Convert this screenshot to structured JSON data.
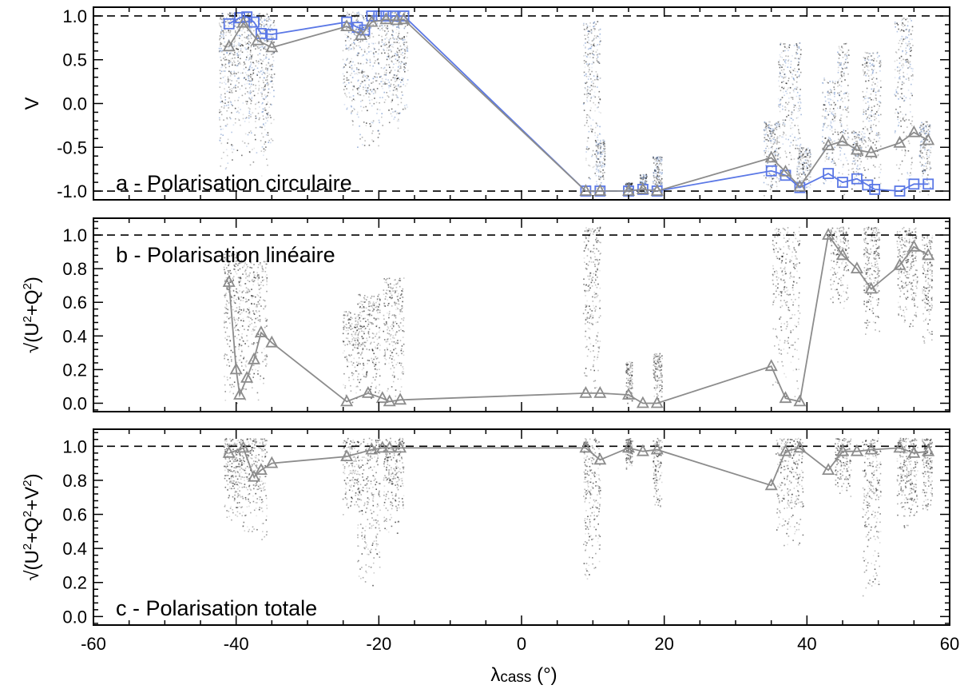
{
  "figure": {
    "xlabel_main": "λ",
    "xlabel_sub": "cass",
    "xlabel_unit": " (°)"
  },
  "chart_data": [
    {
      "type": "line",
      "panel": "a",
      "annotation": "a - Polarisation circulaire",
      "ylabel": "V",
      "xlim": [
        -60,
        60
      ],
      "ylim": [
        -1.1,
        1.1
      ],
      "x_ticks": [
        -60,
        -40,
        -20,
        0,
        20,
        40,
        60
      ],
      "y_ticks": [
        -1.0,
        -0.5,
        0.0,
        0.5,
        1.0
      ],
      "y_tick_labels": [
        "-1.0",
        "-0.5",
        "0.0",
        "0.5",
        "1.0"
      ],
      "reference_lines": [
        1.0,
        -1.0
      ],
      "grid": false,
      "series": [
        {
          "color": "#5b78e6",
          "marker": "square",
          "points": [
            [
              -41,
              0.91
            ],
            [
              -39.5,
              0.98
            ],
            [
              -38.5,
              0.99
            ],
            [
              -37.5,
              0.93
            ],
            [
              -36.5,
              0.8
            ],
            [
              -35,
              0.79
            ],
            [
              -24.5,
              0.93
            ],
            [
              -23,
              0.87
            ],
            [
              -22,
              0.84
            ],
            [
              -21,
              1.0
            ],
            [
              -20,
              1.0
            ],
            [
              -19,
              1.0
            ],
            [
              -18,
              1.0
            ],
            [
              -16.5,
              1.0
            ],
            [
              9,
              -1.0
            ],
            [
              11,
              -1.0
            ],
            [
              15,
              -1.0
            ],
            [
              17,
              -0.98
            ],
            [
              19,
              -1.0
            ],
            [
              35,
              -0.77
            ],
            [
              37,
              -0.82
            ],
            [
              39,
              -0.96
            ],
            [
              43,
              -0.8
            ],
            [
              45,
              -0.9
            ],
            [
              47,
              -0.86
            ],
            [
              48.5,
              -0.93
            ],
            [
              49.5,
              -0.98
            ],
            [
              53,
              -1.0
            ],
            [
              55,
              -0.92
            ],
            [
              57,
              -0.92
            ]
          ]
        },
        {
          "color": "#8c8c8c",
          "marker": "triangle",
          "points": [
            [
              -41,
              0.65
            ],
            [
              -39,
              0.92
            ],
            [
              -37,
              0.72
            ],
            [
              -35,
              0.64
            ],
            [
              -24.5,
              0.88
            ],
            [
              -22.5,
              0.78
            ],
            [
              -21,
              0.93
            ],
            [
              -19,
              0.96
            ],
            [
              -17.5,
              0.95
            ],
            [
              -16.5,
              0.96
            ],
            [
              9,
              -1.0
            ],
            [
              11,
              -1.0
            ],
            [
              15,
              -1.0
            ],
            [
              17,
              -0.98
            ],
            [
              19,
              -1.0
            ],
            [
              35,
              -0.62
            ],
            [
              37,
              -0.78
            ],
            [
              39,
              -0.95
            ],
            [
              43,
              -0.48
            ],
            [
              45,
              -0.43
            ],
            [
              47,
              -0.53
            ],
            [
              49,
              -0.56
            ],
            [
              53,
              -0.45
            ],
            [
              55,
              -0.33
            ],
            [
              57,
              -0.42
            ]
          ]
        }
      ],
      "scatter_columns": [
        {
          "x": -41.5,
          "width": 1.2,
          "y_min": -0.8,
          "y_max": 1.05,
          "density": 1.0,
          "tint": "#6d8fc8"
        },
        {
          "x": -39.2,
          "width": 1.6,
          "y_min": -0.6,
          "y_max": 1.05,
          "density": 1.0,
          "tint": "#6d8fc8"
        },
        {
          "x": -37.0,
          "width": 1.8,
          "y_min": -0.9,
          "y_max": 1.05,
          "density": 1.0,
          "tint": "#6d8fc8"
        },
        {
          "x": -35.5,
          "width": 1.0,
          "y_min": -0.5,
          "y_max": 1.0,
          "density": 0.6,
          "tint": "#6d8fc8"
        },
        {
          "x": -24.0,
          "width": 1.4,
          "y_min": -0.3,
          "y_max": 1.05,
          "density": 0.7,
          "tint": "#6d8fc8"
        },
        {
          "x": -21.5,
          "width": 2.0,
          "y_min": -0.6,
          "y_max": 1.05,
          "density": 1.0,
          "tint": "#6d8fc8"
        },
        {
          "x": -18.5,
          "width": 1.6,
          "y_min": -0.4,
          "y_max": 1.05,
          "density": 0.9,
          "tint": "#6d8fc8"
        },
        {
          "x": -16.8,
          "width": 1.0,
          "y_min": -0.2,
          "y_max": 1.05,
          "density": 0.6,
          "tint": "#6d8fc8"
        },
        {
          "x": 9.8,
          "width": 1.5,
          "y_min": -1.05,
          "y_max": 0.95,
          "density": 1.0,
          "tint": "#6d8fc8"
        },
        {
          "x": 11.0,
          "width": 0.8,
          "y_min": -1.05,
          "y_max": -0.4,
          "density": 0.5,
          "tint": "#6d8fc8"
        },
        {
          "x": 15.0,
          "width": 0.6,
          "y_min": -1.05,
          "y_max": -0.9,
          "density": 0.4,
          "tint": "#6d8fc8"
        },
        {
          "x": 17.0,
          "width": 0.6,
          "y_min": -1.05,
          "y_max": -0.8,
          "density": 0.4,
          "tint": "#6d8fc8"
        },
        {
          "x": 19.0,
          "width": 0.8,
          "y_min": -1.05,
          "y_max": -0.6,
          "density": 0.5,
          "tint": "#6d8fc8"
        },
        {
          "x": 35.0,
          "width": 1.4,
          "y_min": -1.05,
          "y_max": -0.2,
          "density": 0.8,
          "tint": "#6d8fc8"
        },
        {
          "x": 37.5,
          "width": 2.0,
          "y_min": -1.05,
          "y_max": 0.7,
          "density": 1.0,
          "tint": "#6d8fc8"
        },
        {
          "x": 39.5,
          "width": 1.2,
          "y_min": -1.05,
          "y_max": -0.5,
          "density": 0.7,
          "tint": "#6d8fc8"
        },
        {
          "x": 43.0,
          "width": 1.2,
          "y_min": -1.05,
          "y_max": 0.3,
          "density": 0.6,
          "tint": "#6d8fc8"
        },
        {
          "x": 45.0,
          "width": 1.0,
          "y_min": -1.05,
          "y_max": 0.7,
          "density": 0.6,
          "tint": "#6d8fc8"
        },
        {
          "x": 47.0,
          "width": 1.0,
          "y_min": -1.05,
          "y_max": -0.3,
          "density": 0.5,
          "tint": "#6d8fc8"
        },
        {
          "x": 49.0,
          "width": 1.6,
          "y_min": -1.05,
          "y_max": 0.6,
          "density": 0.9,
          "tint": "#6d8fc8"
        },
        {
          "x": 53.5,
          "width": 1.6,
          "y_min": -1.05,
          "y_max": 1.0,
          "density": 0.9,
          "tint": "#6d8fc8"
        },
        {
          "x": 56.5,
          "width": 1.0,
          "y_min": -1.05,
          "y_max": -0.2,
          "density": 0.6,
          "tint": "#6d8fc8"
        }
      ]
    },
    {
      "type": "line",
      "panel": "b",
      "annotation": "b - Polarisation linéaire",
      "ylabel_base": "√(U",
      "ylabel_sup1": "2",
      "ylabel_mid": "+Q",
      "ylabel_sup2": "2",
      "ylabel_end": ")",
      "xlim": [
        -60,
        60
      ],
      "ylim": [
        -0.05,
        1.1
      ],
      "x_ticks": [
        -60,
        -40,
        -20,
        0,
        20,
        40,
        60
      ],
      "y_ticks": [
        0.0,
        0.2,
        0.4,
        0.6,
        0.8,
        1.0
      ],
      "y_tick_labels": [
        "0.0",
        "0.2",
        "0.4",
        "0.6",
        "0.8",
        "1.0"
      ],
      "reference_lines": [
        1.0
      ],
      "grid": false,
      "series": [
        {
          "color": "#8c8c8c",
          "marker": "triangle",
          "points": [
            [
              -41,
              0.72
            ],
            [
              -40,
              0.2
            ],
            [
              -39.5,
              0.05
            ],
            [
              -38.5,
              0.15
            ],
            [
              -37.5,
              0.26
            ],
            [
              -36.5,
              0.42
            ],
            [
              -35,
              0.36
            ],
            [
              -24.5,
              0.01
            ],
            [
              -21.5,
              0.06
            ],
            [
              -19.5,
              0.03
            ],
            [
              -18.5,
              0.01
            ],
            [
              -17,
              0.02
            ],
            [
              9,
              0.06
            ],
            [
              11,
              0.06
            ],
            [
              15,
              0.05
            ],
            [
              17,
              0.0
            ],
            [
              19,
              0.0
            ],
            [
              35,
              0.22
            ],
            [
              37,
              0.03
            ],
            [
              39,
              0.01
            ],
            [
              43,
              1.0
            ],
            [
              45,
              0.88
            ],
            [
              47,
              0.8
            ],
            [
              49,
              0.68
            ],
            [
              53,
              0.82
            ],
            [
              55,
              0.93
            ],
            [
              57,
              0.88
            ]
          ]
        }
      ],
      "scatter_columns": [
        {
          "x": -40.5,
          "width": 1.6,
          "y_min": 0.0,
          "y_max": 0.9,
          "density": 1.0,
          "tint": "#222222"
        },
        {
          "x": -37.5,
          "width": 2.2,
          "y_min": 0.0,
          "y_max": 0.85,
          "density": 1.0,
          "tint": "#222222"
        },
        {
          "x": -24.0,
          "width": 1.4,
          "y_min": 0.0,
          "y_max": 0.55,
          "density": 0.6,
          "tint": "#222222"
        },
        {
          "x": -21.5,
          "width": 2.0,
          "y_min": 0.0,
          "y_max": 0.65,
          "density": 1.0,
          "tint": "#222222"
        },
        {
          "x": -18.0,
          "width": 1.8,
          "y_min": 0.0,
          "y_max": 0.75,
          "density": 0.9,
          "tint": "#222222"
        },
        {
          "x": 9.8,
          "width": 1.5,
          "y_min": 0.0,
          "y_max": 1.05,
          "density": 0.9,
          "tint": "#222222"
        },
        {
          "x": 15.0,
          "width": 0.6,
          "y_min": 0.0,
          "y_max": 0.25,
          "density": 0.4,
          "tint": "#222222"
        },
        {
          "x": 19.0,
          "width": 0.8,
          "y_min": 0.0,
          "y_max": 0.3,
          "density": 0.5,
          "tint": "#222222"
        },
        {
          "x": 37.0,
          "width": 2.4,
          "y_min": 0.0,
          "y_max": 1.05,
          "density": 1.0,
          "tint": "#222222"
        },
        {
          "x": 44.5,
          "width": 1.6,
          "y_min": 0.55,
          "y_max": 1.05,
          "density": 0.6,
          "tint": "#222222"
        },
        {
          "x": 49.0,
          "width": 1.4,
          "y_min": 0.4,
          "y_max": 1.05,
          "density": 0.9,
          "tint": "#222222"
        },
        {
          "x": 54.0,
          "width": 1.8,
          "y_min": 0.45,
          "y_max": 1.05,
          "density": 1.0,
          "tint": "#222222"
        },
        {
          "x": 56.8,
          "width": 0.9,
          "y_min": 0.3,
          "y_max": 1.0,
          "density": 0.6,
          "tint": "#222222"
        }
      ]
    },
    {
      "type": "line",
      "panel": "c",
      "annotation": "c - Polarisation totale",
      "ylabel_base": "√(U",
      "ylabel_sup1": "2",
      "ylabel_mid": "+Q",
      "ylabel_sup2": "2",
      "ylabel_mid2": "+V",
      "ylabel_sup3": "2",
      "ylabel_end": ")",
      "xlim": [
        -60,
        60
      ],
      "ylim": [
        -0.05,
        1.1
      ],
      "x_ticks": [
        -60,
        -40,
        -20,
        0,
        20,
        40,
        60
      ],
      "x_tick_labels": [
        "-60",
        "-40",
        "-20",
        "0",
        "20",
        "40",
        "60"
      ],
      "y_ticks": [
        0.0,
        0.2,
        0.4,
        0.6,
        0.8,
        1.0
      ],
      "y_tick_labels": [
        "0.0",
        "0.2",
        "0.4",
        "0.6",
        "0.8",
        "1.0"
      ],
      "reference_lines": [
        1.0
      ],
      "grid": false,
      "series": [
        {
          "color": "#8c8c8c",
          "marker": "triangle",
          "points": [
            [
              -41,
              0.96
            ],
            [
              -39,
              0.99
            ],
            [
              -37.5,
              0.82
            ],
            [
              -36.5,
              0.86
            ],
            [
              -35,
              0.9
            ],
            [
              -24.5,
              0.94
            ],
            [
              -21,
              0.98
            ],
            [
              -19.5,
              0.99
            ],
            [
              -18.5,
              0.99
            ],
            [
              -17,
              0.99
            ],
            [
              9,
              0.99
            ],
            [
              11,
              0.92
            ],
            [
              15,
              0.99
            ],
            [
              17,
              0.97
            ],
            [
              19,
              0.98
            ],
            [
              35,
              0.77
            ],
            [
              37,
              0.97
            ],
            [
              39,
              0.99
            ],
            [
              43,
              0.86
            ],
            [
              45,
              0.97
            ],
            [
              47,
              0.97
            ],
            [
              49,
              0.98
            ],
            [
              53,
              0.99
            ],
            [
              55,
              0.96
            ],
            [
              57,
              0.97
            ]
          ]
        }
      ],
      "scatter_columns": [
        {
          "x": -40.5,
          "width": 1.6,
          "y_min": 0.55,
          "y_max": 1.05,
          "density": 1.0,
          "tint": "#222222"
        },
        {
          "x": -37.5,
          "width": 2.2,
          "y_min": 0.45,
          "y_max": 1.05,
          "density": 1.0,
          "tint": "#222222"
        },
        {
          "x": -24.0,
          "width": 1.4,
          "y_min": 0.6,
          "y_max": 1.05,
          "density": 0.6,
          "tint": "#222222"
        },
        {
          "x": -21.5,
          "width": 2.0,
          "y_min": 0.15,
          "y_max": 1.05,
          "density": 1.0,
          "tint": "#222222"
        },
        {
          "x": -18.0,
          "width": 1.8,
          "y_min": 0.45,
          "y_max": 1.05,
          "density": 0.9,
          "tint": "#222222"
        },
        {
          "x": 9.8,
          "width": 1.5,
          "y_min": 0.15,
          "y_max": 1.05,
          "density": 0.9,
          "tint": "#222222"
        },
        {
          "x": 15.0,
          "width": 0.6,
          "y_min": 0.85,
          "y_max": 1.05,
          "density": 0.4,
          "tint": "#222222"
        },
        {
          "x": 19.0,
          "width": 0.8,
          "y_min": 0.6,
          "y_max": 1.05,
          "density": 0.5,
          "tint": "#222222"
        },
        {
          "x": 37.5,
          "width": 2.4,
          "y_min": 0.4,
          "y_max": 1.05,
          "density": 1.0,
          "tint": "#222222"
        },
        {
          "x": 45.0,
          "width": 1.4,
          "y_min": 0.7,
          "y_max": 1.05,
          "density": 0.6,
          "tint": "#222222"
        },
        {
          "x": 49.0,
          "width": 1.6,
          "y_min": 0.1,
          "y_max": 1.05,
          "density": 0.9,
          "tint": "#222222"
        },
        {
          "x": 54.0,
          "width": 1.8,
          "y_min": 0.5,
          "y_max": 1.05,
          "density": 1.0,
          "tint": "#222222"
        },
        {
          "x": 56.8,
          "width": 0.9,
          "y_min": 0.6,
          "y_max": 1.05,
          "density": 0.6,
          "tint": "#222222"
        }
      ]
    }
  ]
}
